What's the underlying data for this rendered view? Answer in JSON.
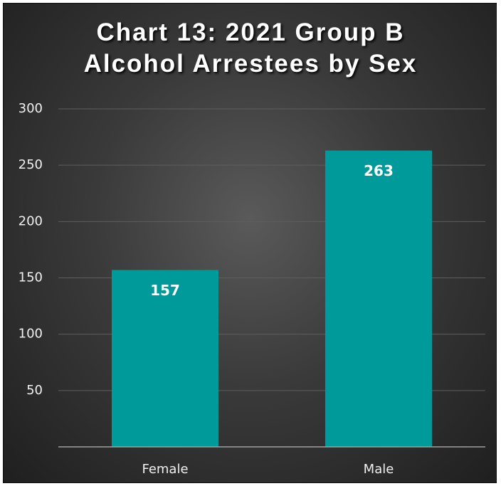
{
  "chart_data": {
    "type": "bar",
    "title": "Chart 13: 2021 Group B Alcohol Arrestees by Sex",
    "categories": [
      "Female",
      "Male"
    ],
    "values": [
      157,
      263
    ],
    "color": "#009a9a",
    "ylim": [
      0,
      300
    ],
    "yticks": [
      50,
      100,
      150,
      200,
      250,
      300
    ],
    "grid": true
  }
}
